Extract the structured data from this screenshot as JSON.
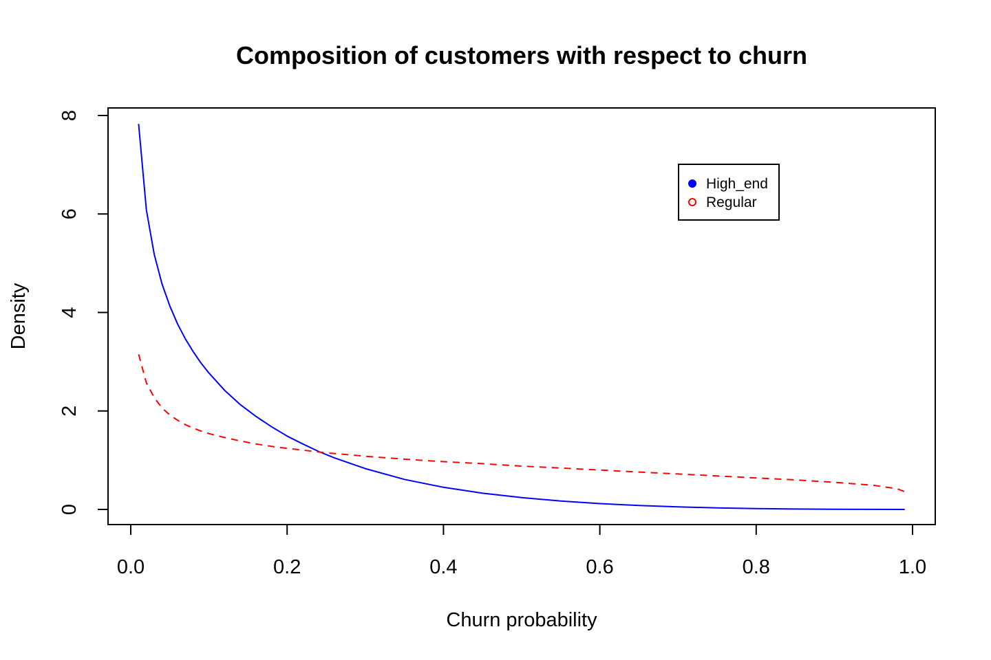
{
  "chart_data": {
    "type": "line",
    "title": "Composition of customers with respect to churn",
    "xlabel": "Churn probability",
    "ylabel": "Density",
    "xlim": [
      0.0,
      1.0
    ],
    "ylim": [
      0,
      8
    ],
    "x_ticks": [
      "0.0",
      "0.2",
      "0.4",
      "0.6",
      "0.8",
      "1.0"
    ],
    "y_ticks": [
      "0",
      "2",
      "4",
      "6",
      "8"
    ],
    "grid": false,
    "legend_position": "top-right",
    "series": [
      {
        "name": "High_end",
        "color": "#0000ff",
        "line_style": "solid",
        "legend_marker": "filled-circle",
        "x": [
          0.01,
          0.02,
          0.03,
          0.04,
          0.05,
          0.06,
          0.07,
          0.08,
          0.09,
          0.1,
          0.12,
          0.14,
          0.16,
          0.18,
          0.2,
          0.22,
          0.24,
          0.26,
          0.28,
          0.3,
          0.35,
          0.4,
          0.45,
          0.5,
          0.55,
          0.6,
          0.65,
          0.7,
          0.75,
          0.8,
          0.85,
          0.9,
          0.95,
          0.99
        ],
        "y": [
          7.83,
          6.08,
          5.18,
          4.58,
          4.13,
          3.76,
          3.46,
          3.2,
          2.97,
          2.77,
          2.42,
          2.13,
          1.89,
          1.68,
          1.49,
          1.33,
          1.18,
          1.05,
          0.94,
          0.83,
          0.61,
          0.45,
          0.33,
          0.24,
          0.17,
          0.118,
          0.08,
          0.052,
          0.032,
          0.018,
          0.009,
          0.004,
          0.001,
          0.0
        ]
      },
      {
        "name": "Regular",
        "color": "#ff0000",
        "line_style": "dashed",
        "legend_marker": "open-circle",
        "x": [
          0.01,
          0.02,
          0.03,
          0.04,
          0.05,
          0.06,
          0.07,
          0.08,
          0.09,
          0.1,
          0.12,
          0.14,
          0.16,
          0.18,
          0.2,
          0.25,
          0.3,
          0.35,
          0.4,
          0.45,
          0.5,
          0.55,
          0.6,
          0.65,
          0.7,
          0.75,
          0.8,
          0.85,
          0.9,
          0.95,
          0.98,
          0.99
        ],
        "y": [
          3.15,
          2.57,
          2.27,
          2.06,
          1.92,
          1.81,
          1.72,
          1.65,
          1.59,
          1.54,
          1.46,
          1.39,
          1.33,
          1.28,
          1.24,
          1.15,
          1.08,
          1.02,
          0.97,
          0.93,
          0.88,
          0.84,
          0.8,
          0.76,
          0.72,
          0.68,
          0.64,
          0.6,
          0.55,
          0.49,
          0.42,
          0.36
        ]
      }
    ]
  }
}
